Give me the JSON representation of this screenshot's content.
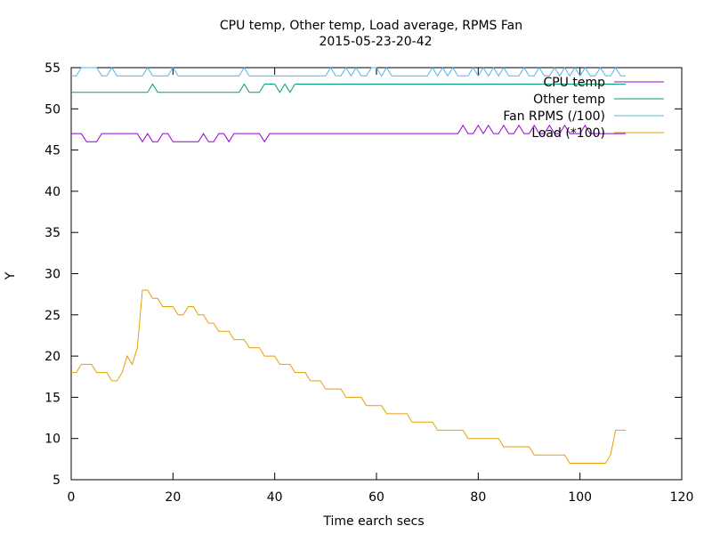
{
  "chart_data": {
    "type": "line",
    "title": "CPU temp, Other temp, Load average, RPMS Fan",
    "subtitle": "2015-05-23-20-42",
    "xlabel": "Time earch  secs",
    "ylabel": "Y",
    "xlim": [
      0,
      120
    ],
    "ylim": [
      5,
      55
    ],
    "xticks": [
      0,
      20,
      40,
      60,
      80,
      100,
      120
    ],
    "yticks": [
      5,
      10,
      15,
      20,
      25,
      30,
      35,
      40,
      45,
      50,
      55
    ],
    "grid": false,
    "legend_position": "top-right",
    "x": [
      0,
      1,
      2,
      3,
      4,
      5,
      6,
      7,
      8,
      9,
      10,
      11,
      12,
      13,
      14,
      15,
      16,
      17,
      18,
      19,
      20,
      21,
      22,
      23,
      24,
      25,
      26,
      27,
      28,
      29,
      30,
      31,
      32,
      33,
      34,
      35,
      36,
      37,
      38,
      39,
      40,
      41,
      42,
      43,
      44,
      45,
      46,
      47,
      48,
      49,
      50,
      51,
      52,
      53,
      54,
      55,
      56,
      57,
      58,
      59,
      60,
      61,
      62,
      63,
      64,
      65,
      66,
      67,
      68,
      69,
      70,
      71,
      72,
      73,
      74,
      75,
      76,
      77,
      78,
      79,
      80,
      81,
      82,
      83,
      84,
      85,
      86,
      87,
      88,
      89,
      90,
      91,
      92,
      93,
      94,
      95,
      96,
      97,
      98,
      99,
      100,
      101,
      102,
      103,
      104,
      105,
      106,
      107,
      108,
      109
    ],
    "series": [
      {
        "name": "CPU temp",
        "color": "#9400d3",
        "values": [
          47,
          47,
          47,
          46,
          46,
          46,
          47,
          47,
          47,
          47,
          47,
          47,
          47,
          47,
          46,
          47,
          46,
          46,
          47,
          47,
          46,
          46,
          46,
          46,
          46,
          46,
          47,
          46,
          46,
          47,
          47,
          46,
          47,
          47,
          47,
          47,
          47,
          47,
          46,
          47,
          47,
          47,
          47,
          47,
          47,
          47,
          47,
          47,
          47,
          47,
          47,
          47,
          47,
          47,
          47,
          47,
          47,
          47,
          47,
          47,
          47,
          47,
          47,
          47,
          47,
          47,
          47,
          47,
          47,
          47,
          47,
          47,
          47,
          47,
          47,
          47,
          47,
          48,
          47,
          47,
          48,
          47,
          48,
          47,
          47,
          48,
          47,
          47,
          48,
          47,
          47,
          48,
          47,
          47,
          48,
          47,
          47,
          48,
          47,
          47,
          47,
          48,
          47,
          47,
          47,
          47,
          47,
          47,
          47,
          47
        ]
      },
      {
        "name": "Other temp",
        "color": "#009e73",
        "values": [
          52,
          52,
          52,
          52,
          52,
          52,
          52,
          52,
          52,
          52,
          52,
          52,
          52,
          52,
          52,
          52,
          53,
          52,
          52,
          52,
          52,
          52,
          52,
          52,
          52,
          52,
          52,
          52,
          52,
          52,
          52,
          52,
          52,
          52,
          53,
          52,
          52,
          52,
          53,
          53,
          53,
          52,
          53,
          52,
          53,
          53,
          53,
          53,
          53,
          53,
          53,
          53,
          53,
          53,
          53,
          53,
          53,
          53,
          53,
          53,
          53,
          53,
          53,
          53,
          53,
          53,
          53,
          53,
          53,
          53,
          53,
          53,
          53,
          53,
          53,
          53,
          53,
          53,
          53,
          53,
          53,
          53,
          53,
          53,
          53,
          53,
          53,
          53,
          53,
          53,
          53,
          53,
          53,
          53,
          53,
          53,
          53,
          53,
          53,
          53,
          53,
          53,
          53,
          53,
          53,
          53,
          53,
          53,
          53,
          53
        ]
      },
      {
        "name": "Fan RPMS (/100)",
        "color": "#56b4e9",
        "values": [
          54,
          54,
          55,
          55,
          55,
          55,
          54,
          54,
          55,
          54,
          54,
          54,
          54,
          54,
          54,
          55,
          54,
          54,
          54,
          54,
          55,
          54,
          54,
          54,
          54,
          54,
          54,
          54,
          54,
          54,
          54,
          54,
          54,
          54,
          55,
          54,
          54,
          54,
          54,
          54,
          54,
          54,
          54,
          54,
          54,
          54,
          54,
          54,
          54,
          54,
          54,
          55,
          54,
          54,
          55,
          54,
          55,
          54,
          54,
          55,
          55,
          54,
          55,
          54,
          54,
          54,
          54,
          54,
          54,
          54,
          54,
          55,
          54,
          55,
          54,
          55,
          54,
          54,
          54,
          55,
          54,
          55,
          54,
          55,
          54,
          55,
          54,
          54,
          54,
          55,
          54,
          54,
          55,
          54,
          54,
          55,
          54,
          55,
          54,
          55,
          54,
          55,
          54,
          54,
          55,
          54,
          54,
          55,
          54,
          54
        ]
      },
      {
        "name": "Load (*100)",
        "color": "#e69f00",
        "values": [
          18,
          18,
          19,
          19,
          19,
          18,
          18,
          18,
          17,
          17,
          18,
          20,
          19,
          21,
          28,
          28,
          27,
          27,
          26,
          26,
          26,
          25,
          25,
          26,
          26,
          25,
          25,
          24,
          24,
          23,
          23,
          23,
          22,
          22,
          22,
          21,
          21,
          21,
          20,
          20,
          20,
          19,
          19,
          19,
          18,
          18,
          18,
          17,
          17,
          17,
          16,
          16,
          16,
          16,
          15,
          15,
          15,
          15,
          14,
          14,
          14,
          14,
          13,
          13,
          13,
          13,
          13,
          12,
          12,
          12,
          12,
          12,
          11,
          11,
          11,
          11,
          11,
          11,
          10,
          10,
          10,
          10,
          10,
          10,
          10,
          9,
          9,
          9,
          9,
          9,
          9,
          8,
          8,
          8,
          8,
          8,
          8,
          8,
          7,
          7,
          7,
          7,
          7,
          7,
          7,
          7,
          8,
          11,
          11,
          11
        ]
      }
    ]
  }
}
